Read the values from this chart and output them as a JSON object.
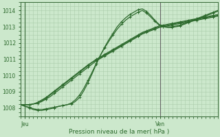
{
  "xlabel": "Pression niveau de la mer( hPa )",
  "bg_color": "#cce8cc",
  "grid_color": "#aaccaa",
  "line_color": "#2d6a2d",
  "axis_color": "#336633",
  "ylim": [
    1007.5,
    1014.5
  ],
  "xlim": [
    0,
    48
  ],
  "jeu_x": 1,
  "ven_x": 34,
  "yticks": [
    1008,
    1009,
    1010,
    1011,
    1012,
    1013,
    1014
  ],
  "series_curved": [
    [
      1008.2,
      1008.1,
      1008.05,
      1007.95,
      1007.9,
      1007.9,
      1007.95,
      1008.0,
      1008.05,
      1008.1,
      1008.15,
      1008.2,
      1008.25,
      1008.4,
      1008.65,
      1009.05,
      1009.55,
      1010.1,
      1010.7,
      1011.25,
      1011.75,
      1012.2,
      1012.6,
      1013.0,
      1013.3,
      1013.55,
      1013.75,
      1013.9,
      1014.05,
      1014.1,
      1013.95,
      1013.7,
      1013.4,
      1013.15,
      1013.05,
      1013.0,
      1013.0,
      1013.05,
      1013.1,
      1013.2,
      1013.3,
      1013.4,
      1013.5,
      1013.6,
      1013.7,
      1013.8,
      1013.9,
      1014.0
    ],
    [
      1008.2,
      1008.1,
      1008.0,
      1007.9,
      1007.85,
      1007.85,
      1007.9,
      1007.95,
      1008.0,
      1008.1,
      1008.15,
      1008.2,
      1008.3,
      1008.5,
      1008.8,
      1009.2,
      1009.7,
      1010.2,
      1010.75,
      1011.25,
      1011.7,
      1012.1,
      1012.5,
      1012.85,
      1013.15,
      1013.4,
      1013.6,
      1013.75,
      1013.9,
      1014.0,
      1013.85,
      1013.6,
      1013.35,
      1013.1,
      1013.0,
      1012.95,
      1012.95,
      1013.0,
      1013.05,
      1013.15,
      1013.25,
      1013.35,
      1013.45,
      1013.55,
      1013.65,
      1013.75,
      1013.85,
      1013.95
    ]
  ],
  "series_linear": [
    [
      1008.2,
      1008.2,
      1008.2,
      1008.25,
      1008.3,
      1008.4,
      1008.55,
      1008.7,
      1008.9,
      1009.1,
      1009.3,
      1009.5,
      1009.7,
      1009.9,
      1010.1,
      1010.3,
      1010.5,
      1010.7,
      1010.9,
      1011.05,
      1011.2,
      1011.35,
      1011.5,
      1011.65,
      1011.8,
      1011.95,
      1012.1,
      1012.25,
      1012.4,
      1012.55,
      1012.65,
      1012.75,
      1012.85,
      1012.95,
      1013.0,
      1013.05,
      1013.1,
      1013.15,
      1013.2,
      1013.25,
      1013.3,
      1013.35,
      1013.4,
      1013.45,
      1013.5,
      1013.55,
      1013.6,
      1013.65
    ],
    [
      1008.2,
      1008.2,
      1008.2,
      1008.25,
      1008.3,
      1008.45,
      1008.6,
      1008.8,
      1009.0,
      1009.2,
      1009.4,
      1009.6,
      1009.8,
      1010.0,
      1010.2,
      1010.4,
      1010.6,
      1010.8,
      1010.95,
      1011.1,
      1011.25,
      1011.4,
      1011.55,
      1011.7,
      1011.85,
      1012.0,
      1012.15,
      1012.3,
      1012.45,
      1012.6,
      1012.7,
      1012.8,
      1012.9,
      1013.0,
      1013.05,
      1013.1,
      1013.15,
      1013.2,
      1013.25,
      1013.3,
      1013.35,
      1013.4,
      1013.45,
      1013.5,
      1013.55,
      1013.6,
      1013.65,
      1013.7
    ],
    [
      1008.2,
      1008.2,
      1008.2,
      1008.25,
      1008.35,
      1008.5,
      1008.65,
      1008.85,
      1009.05,
      1009.25,
      1009.45,
      1009.65,
      1009.85,
      1010.05,
      1010.25,
      1010.45,
      1010.65,
      1010.82,
      1011.0,
      1011.15,
      1011.3,
      1011.45,
      1011.6,
      1011.75,
      1011.9,
      1012.05,
      1012.2,
      1012.35,
      1012.5,
      1012.65,
      1012.75,
      1012.85,
      1012.95,
      1013.05,
      1013.1,
      1013.15,
      1013.2,
      1013.25,
      1013.3,
      1013.35,
      1013.4,
      1013.45,
      1013.5,
      1013.55,
      1013.6,
      1013.65,
      1013.7,
      1013.75
    ]
  ]
}
